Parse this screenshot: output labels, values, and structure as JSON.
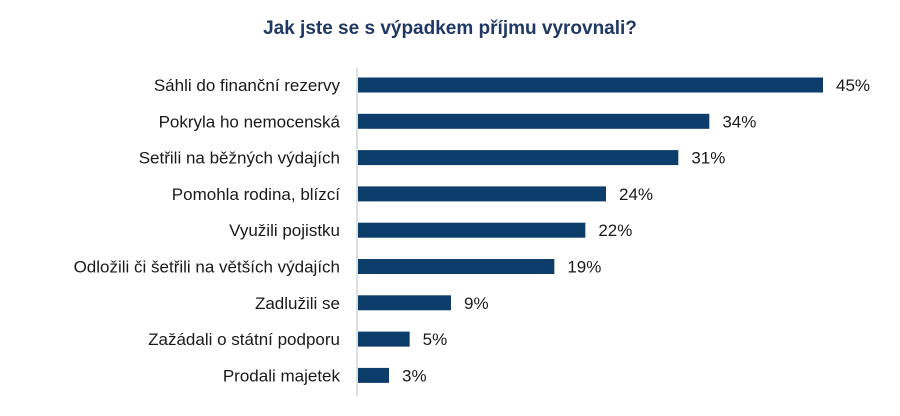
{
  "chart_data": {
    "type": "bar",
    "orientation": "horizontal",
    "title": "Jak jste se s výpadkem příjmu vyrovnali?",
    "categories": [
      "Sáhli do finanční rezervy",
      "Pokryla ho nemocenská",
      "Setřili na běžných výdajích",
      "Pomohla rodina, blízcí",
      "Využili pojistku",
      "Odložili či šetřili na větších výdajích",
      "Zadlužili se",
      "Zažádali o státní podporu",
      "Prodali majetek"
    ],
    "values": [
      45,
      34,
      31,
      24,
      22,
      19,
      9,
      5,
      3
    ],
    "value_labels": [
      "45%",
      "34%",
      "31%",
      "24%",
      "22%",
      "19%",
      "9%",
      "5%",
      "3%"
    ],
    "xlim": [
      0,
      50
    ],
    "grid": false,
    "legend": "none",
    "colors": {
      "bar": "#0d3d6b",
      "title": "#1f3864",
      "axis": "#bfbfbf"
    }
  }
}
